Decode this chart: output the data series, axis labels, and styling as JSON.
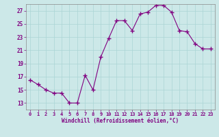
{
  "x": [
    0,
    1,
    2,
    3,
    4,
    5,
    6,
    7,
    8,
    9,
    10,
    11,
    12,
    13,
    14,
    15,
    16,
    17,
    18,
    19,
    20,
    21,
    22,
    23
  ],
  "y": [
    16.5,
    15.8,
    15.0,
    14.5,
    14.5,
    13.0,
    13.0,
    17.2,
    15.0,
    20.0,
    22.8,
    25.5,
    25.5,
    24.0,
    26.5,
    26.8,
    27.8,
    27.8,
    26.8,
    24.0,
    23.8,
    22.0,
    21.2,
    21.2
  ],
  "line_color": "#800080",
  "marker": "+",
  "marker_size": 4,
  "marker_lw": 1.0,
  "line_width": 0.8,
  "bg_color": "#cce8e8",
  "grid_color": "#aad4d4",
  "xlabel": "Windchill (Refroidissement éolien,°C)",
  "xlabel_color": "#800080",
  "tick_color": "#800080",
  "ylim": [
    12,
    28
  ],
  "xlim": [
    -0.5,
    23.5
  ],
  "yticks": [
    13,
    15,
    17,
    19,
    21,
    23,
    25,
    27
  ],
  "xticks": [
    0,
    1,
    2,
    3,
    4,
    5,
    6,
    7,
    8,
    9,
    10,
    11,
    12,
    13,
    14,
    15,
    16,
    17,
    18,
    19,
    20,
    21,
    22,
    23
  ],
  "xlabel_fontsize": 5.5,
  "xtick_fontsize": 5.0,
  "ytick_fontsize": 5.5
}
